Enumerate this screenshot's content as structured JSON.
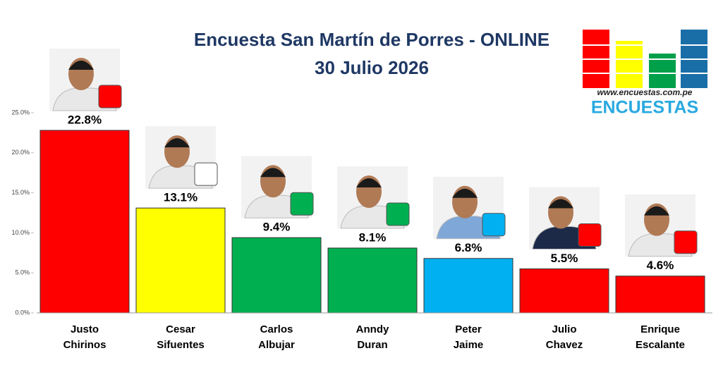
{
  "chart_data": {
    "type": "bar",
    "title": "Encuesta San Martín de Porres - ONLINE",
    "subtitle": "30 Julio 2026",
    "categories": [
      "Justo\nChirinos",
      "Cesar\nSifuentes",
      "Carlos\nAlbujar",
      "Anndy\nDuran",
      "Peter\nJaime",
      "Julio\nChavez",
      "Enrique\nEscalante"
    ],
    "values": [
      22.8,
      13.1,
      9.4,
      8.1,
      6.8,
      5.5,
      4.6
    ],
    "value_labels": [
      "22.8%",
      "13.1%",
      "9.4%",
      "8.1%",
      "6.8%",
      "5.5%",
      "4.6%"
    ],
    "colors": [
      "#ff0000",
      "#ffff00",
      "#00b050",
      "#00b050",
      "#00b0f0",
      "#ff0000",
      "#ff0000"
    ],
    "ylim": [
      0,
      25
    ],
    "yticks": [
      {
        "value": 0,
        "label": "0.0%"
      },
      {
        "value": 5,
        "label": "5.0%"
      },
      {
        "value": 10,
        "label": "10.0%"
      },
      {
        "value": 15,
        "label": "15.0%"
      },
      {
        "value": 20,
        "label": "20.0%"
      },
      {
        "value": 25,
        "label": "25.0%"
      }
    ],
    "grid": false
  },
  "logo": {
    "url": "www.encuestas.com.pe",
    "name": "ENCUESTAS"
  }
}
